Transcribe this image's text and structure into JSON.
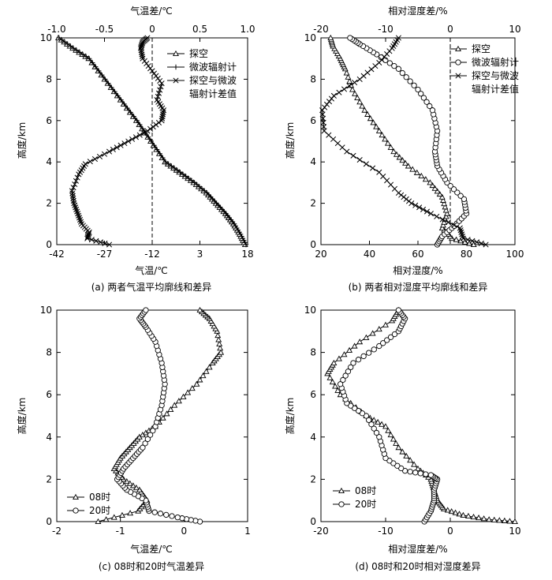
{
  "panels": [
    {
      "id": "a",
      "caption": "(a) 两者气温平均廓线和差异",
      "xlabel": "气温/℃",
      "ylabel": "高度/km",
      "top_xlabel": "气温差/℃",
      "xlim": [
        -42,
        18
      ],
      "xticks": [
        "-42",
        "-27",
        "-12",
        "3",
        "18"
      ],
      "top_xlim": [
        -1.0,
        1.0
      ],
      "top_xticks": [
        "-1.0",
        "-0.5",
        "0",
        "0.5",
        "1.0"
      ],
      "ylim": [
        0,
        10
      ],
      "yticks": [
        "0",
        "2",
        "4",
        "6",
        "8",
        "10"
      ],
      "legend": [
        "探空",
        "微波辐射计",
        "探空与微波",
        "辐射计差值"
      ],
      "refline": {
        "axis": "top",
        "value": 0
      }
    },
    {
      "id": "b",
      "caption": "(b) 两者相对湿度平均廓线和差异",
      "xlabel": "相对湿度/%",
      "ylabel": "高度/km",
      "top_xlabel": "相对湿度差/%",
      "xlim": [
        20,
        100
      ],
      "xticks": [
        "20",
        "40",
        "60",
        "80",
        "100"
      ],
      "top_xlim": [
        -20,
        10
      ],
      "top_xticks": [
        "-20",
        "-10",
        "0",
        "10"
      ],
      "ylim": [
        0,
        10
      ],
      "yticks": [
        "0",
        "2",
        "4",
        "6",
        "8",
        "10"
      ],
      "legend": [
        "探空",
        "微波辐射计",
        "探空与微波",
        "辐射计差值"
      ],
      "refline": {
        "axis": "top",
        "value": 0
      }
    },
    {
      "id": "c",
      "caption": "(c) 08时和20时气温差异",
      "xlabel": "气温差/℃",
      "ylabel": "高度/km",
      "xlim": [
        -2,
        1
      ],
      "xticks": [
        "-2",
        "-1",
        "0",
        "1"
      ],
      "ylim": [
        0,
        10
      ],
      "yticks": [
        "0",
        "2",
        "4",
        "6",
        "8",
        "10"
      ],
      "legend": [
        "08时",
        "20时"
      ]
    },
    {
      "id": "d",
      "caption": "(d) 08时和20时相对湿度差异",
      "xlabel": "相对湿度差/%",
      "ylabel": "高度/km",
      "xlim": [
        -20,
        10
      ],
      "xticks": [
        "-20",
        "-10",
        "0",
        "10"
      ],
      "ylim": [
        0,
        10
      ],
      "yticks": [
        "0",
        "2",
        "4",
        "6",
        "8",
        "10"
      ],
      "legend": [
        "08时",
        "20时"
      ]
    }
  ],
  "chart_data": [
    {
      "type": "line",
      "panel": "a",
      "series": [
        {
          "name": "探空",
          "marker": "triangle",
          "axis": "bottom",
          "x": [
            17.2,
            15.5,
            13.5,
            11.0,
            8.0,
            5.0,
            1.0,
            -3.5,
            -8.0,
            -12.5,
            -17.0,
            -22.0,
            -27.0,
            -32.0,
            -37.0,
            -41.5
          ],
          "y": [
            0.0,
            0.5,
            1.0,
            1.5,
            2.0,
            2.5,
            3.0,
            3.5,
            4.0,
            5.0,
            6.0,
            7.0,
            8.0,
            9.0,
            9.5,
            10.0
          ]
        },
        {
          "name": "微波辐射计",
          "marker": "plus",
          "axis": "bottom",
          "x": [
            17.5,
            15.8,
            13.8,
            11.2,
            8.2,
            5.2,
            1.3,
            -3.2,
            -7.8,
            -12.3,
            -16.8,
            -21.8,
            -26.8,
            -31.8,
            -36.8,
            -41.3
          ],
          "y": [
            0.0,
            0.5,
            1.0,
            1.5,
            2.0,
            2.5,
            3.0,
            3.5,
            4.0,
            5.0,
            6.0,
            7.0,
            8.0,
            9.0,
            9.5,
            10.0
          ]
        },
        {
          "name": "探空与微波辐射计差值",
          "marker": "x",
          "axis": "top",
          "x": [
            -0.45,
            -0.68,
            -0.66,
            -0.74,
            -0.78,
            -0.82,
            -0.84,
            -0.77,
            -0.7,
            -0.45,
            -0.25,
            -0.05,
            0.1,
            0.12,
            0.05,
            0.1,
            0.0,
            -0.1,
            -0.12,
            -0.1,
            -0.05
          ],
          "y": [
            0.0,
            0.3,
            0.6,
            1.0,
            1.5,
            2.0,
            2.6,
            3.4,
            3.9,
            4.5,
            5.0,
            5.5,
            6.0,
            6.5,
            7.0,
            7.8,
            8.4,
            9.0,
            9.5,
            9.8,
            10.0
          ]
        }
      ]
    },
    {
      "type": "line",
      "panel": "b",
      "series": [
        {
          "name": "探空",
          "marker": "triangle",
          "axis": "bottom",
          "x": [
            83,
            74,
            70,
            72,
            70,
            65,
            56,
            50,
            44,
            38,
            33,
            30,
            28,
            25,
            24
          ],
          "y": [
            0.0,
            0.3,
            0.8,
            1.5,
            2.3,
            3.0,
            3.8,
            4.5,
            5.5,
            6.5,
            7.5,
            8.5,
            9.0,
            9.6,
            10.0
          ]
        },
        {
          "name": "微波辐射计",
          "marker": "circle",
          "axis": "bottom",
          "x": [
            68,
            70,
            75,
            80,
            79,
            72,
            68,
            67,
            68,
            66,
            60,
            52,
            43,
            36,
            32
          ],
          "y": [
            0.0,
            0.4,
            0.9,
            1.5,
            2.2,
            3.0,
            3.8,
            4.5,
            5.5,
            6.5,
            7.5,
            8.5,
            9.2,
            9.7,
            10.0
          ]
        },
        {
          "name": "探空与微波辐射计差值",
          "marker": "x",
          "axis": "top",
          "x": [
            5.5,
            2.0,
            1.5,
            -3.0,
            -6.0,
            -8.0,
            -11.0,
            -16.0,
            -19.5,
            -19.8,
            -18.0,
            -14.0,
            -11.0,
            -9.0,
            -8.0
          ],
          "y": [
            0.0,
            0.3,
            0.8,
            1.5,
            2.0,
            2.5,
            3.5,
            4.5,
            5.5,
            6.5,
            7.2,
            8.0,
            8.8,
            9.5,
            10.0
          ]
        }
      ]
    },
    {
      "type": "line",
      "panel": "c",
      "series": [
        {
          "name": "08时",
          "marker": "triangle",
          "x": [
            -1.35,
            -0.72,
            -0.58,
            -0.7,
            -0.95,
            -1.1,
            -1.0,
            -0.85,
            -0.7,
            -0.45,
            -0.15,
            0.2,
            0.45,
            0.58,
            0.52,
            0.4,
            0.25
          ],
          "y": [
            0.0,
            0.5,
            1.0,
            1.5,
            2.0,
            2.5,
            3.0,
            3.5,
            4.0,
            4.5,
            5.5,
            6.5,
            7.5,
            8.0,
            9.0,
            9.6,
            10.0
          ]
        },
        {
          "name": "20时",
          "marker": "circle",
          "x": [
            0.25,
            -0.1,
            -0.55,
            -0.6,
            -0.9,
            -1.05,
            -0.95,
            -0.8,
            -0.65,
            -0.45,
            -0.35,
            -0.3,
            -0.35,
            -0.45,
            -0.6,
            -0.7,
            -0.6
          ],
          "y": [
            0.0,
            0.2,
            0.5,
            1.0,
            1.5,
            2.0,
            2.5,
            3.0,
            3.5,
            4.5,
            5.5,
            6.5,
            7.5,
            8.5,
            9.2,
            9.6,
            10.0
          ]
        }
      ]
    },
    {
      "type": "line",
      "panel": "d",
      "series": [
        {
          "name": "08时",
          "marker": "triangle",
          "x": [
            10,
            6,
            2,
            -1,
            -2,
            -2.5,
            -3,
            -5,
            -8,
            -10,
            -13,
            -17,
            -19,
            -18,
            -14,
            -9,
            -8
          ],
          "y": [
            0.0,
            0.1,
            0.3,
            0.6,
            1.0,
            1.5,
            2.0,
            2.5,
            3.5,
            4.5,
            5.0,
            6.0,
            7.0,
            7.5,
            8.5,
            9.5,
            10.0
          ]
        },
        {
          "name": "20时",
          "marker": "circle",
          "x": [
            -4,
            -3,
            -2.5,
            -2.5,
            -2,
            -3,
            -7,
            -10,
            -11,
            -13,
            -16,
            -17,
            -15,
            -11,
            -8,
            -7,
            -8
          ],
          "y": [
            0.0,
            0.5,
            1.0,
            1.5,
            2.0,
            2.2,
            2.4,
            3.0,
            4.0,
            5.0,
            5.6,
            6.5,
            7.5,
            8.3,
            9.0,
            9.6,
            10.0
          ]
        }
      ]
    }
  ]
}
